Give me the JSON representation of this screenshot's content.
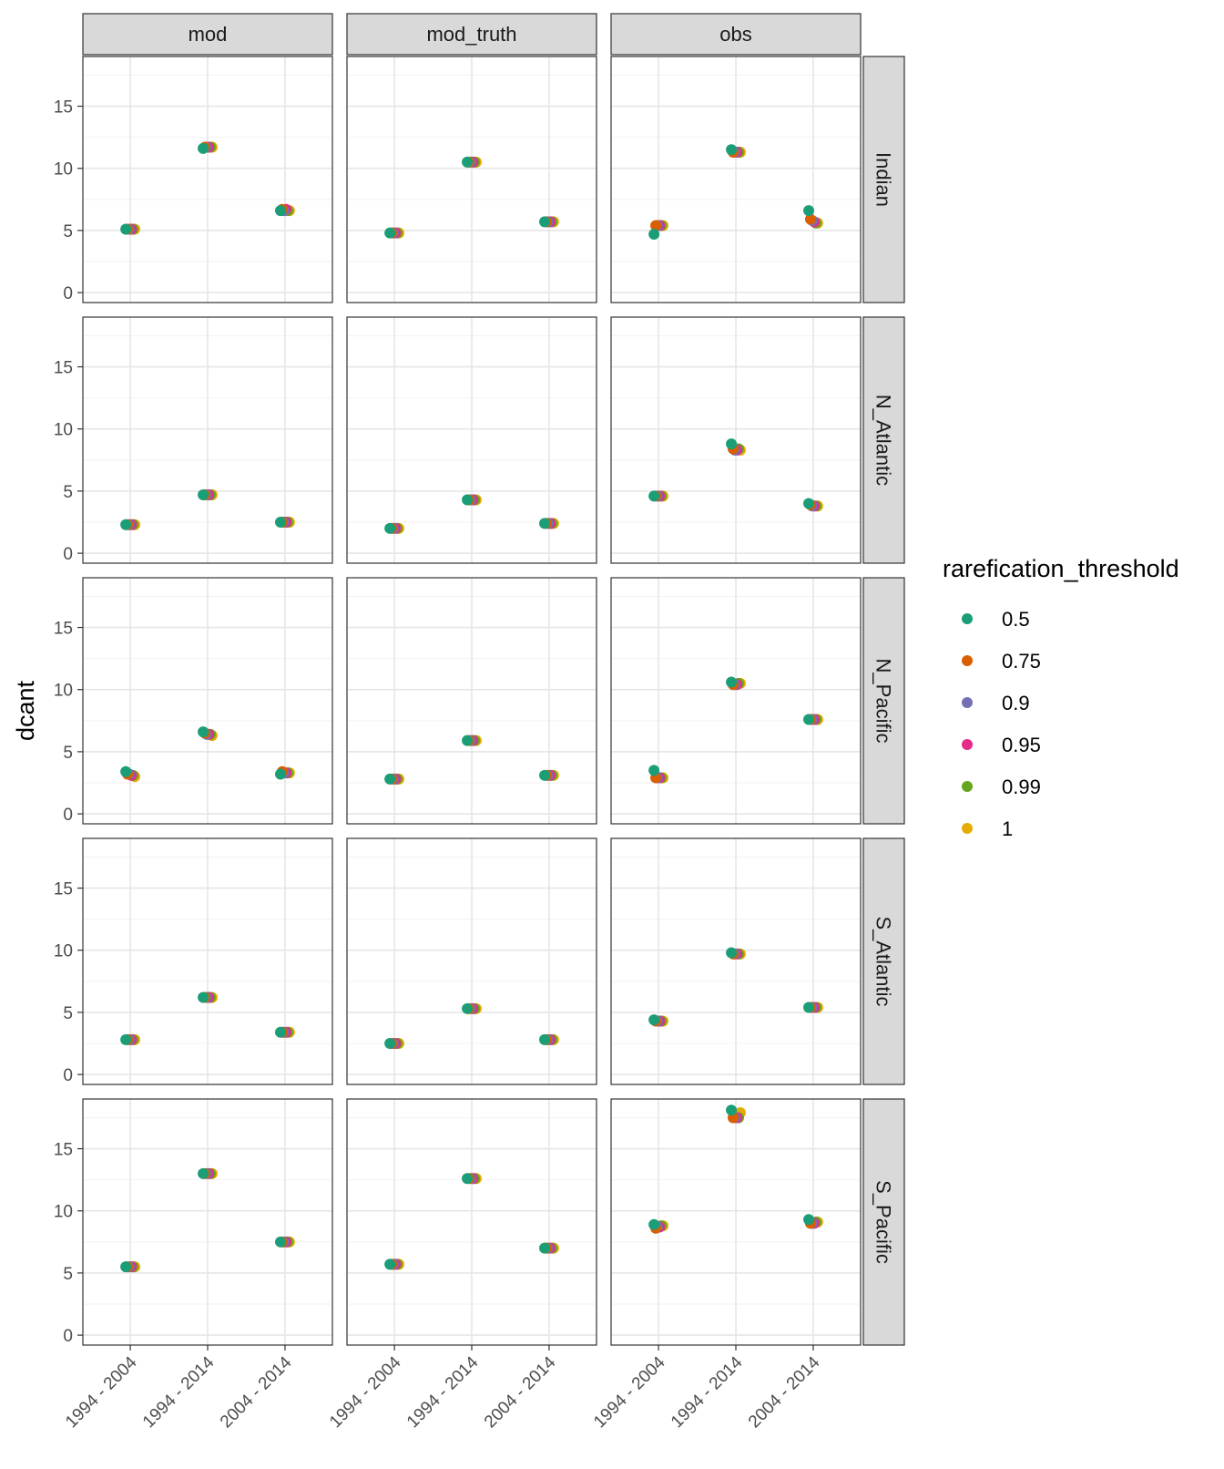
{
  "chart_data": {
    "type": "scatter",
    "ylabel": "dcant",
    "xlabel": "",
    "ylim": [
      -0.8,
      19
    ],
    "y_ticks": [
      0,
      5,
      10,
      15
    ],
    "grid": true,
    "legend_position": "right",
    "legend_title": "rarefication_threshold",
    "x_categories": [
      "1994 - 2004",
      "1994 - 2014",
      "2004 - 2014"
    ],
    "col_facets": [
      "mod",
      "mod_truth",
      "obs"
    ],
    "row_facets": [
      "Indian",
      "N_Atlantic",
      "N_Pacific",
      "S_Atlantic",
      "S_Pacific"
    ],
    "series": [
      {
        "name": "0.5",
        "color": "#1B9E77"
      },
      {
        "name": "0.75",
        "color": "#D95F02"
      },
      {
        "name": "0.9",
        "color": "#7570B3"
      },
      {
        "name": "0.95",
        "color": "#E7298A"
      },
      {
        "name": "0.99",
        "color": "#66A61E"
      },
      {
        "name": "1",
        "color": "#E6AB02"
      }
    ],
    "values": {
      "mod": {
        "Indian": [
          [
            5.1,
            5.1,
            5.1,
            5.1,
            5.1,
            5.1
          ],
          [
            11.6,
            11.7,
            11.7,
            11.7,
            11.7,
            11.7
          ],
          [
            6.6,
            6.7,
            6.6,
            6.7,
            6.6,
            6.6
          ]
        ],
        "N_Atlantic": [
          [
            2.3,
            2.3,
            2.3,
            2.3,
            2.3,
            2.3
          ],
          [
            4.7,
            4.7,
            4.7,
            4.7,
            4.7,
            4.7
          ],
          [
            2.5,
            2.5,
            2.5,
            2.5,
            2.5,
            2.5
          ]
        ],
        "N_Pacific": [
          [
            3.4,
            3.2,
            3.2,
            3.1,
            3.1,
            3.0
          ],
          [
            6.6,
            6.5,
            6.4,
            6.4,
            6.4,
            6.3
          ],
          [
            3.2,
            3.4,
            3.3,
            3.3,
            3.3,
            3.3
          ]
        ],
        "S_Atlantic": [
          [
            2.8,
            2.8,
            2.8,
            2.8,
            2.8,
            2.8
          ],
          [
            6.2,
            6.2,
            6.2,
            6.2,
            6.2,
            6.2
          ],
          [
            3.4,
            3.4,
            3.4,
            3.4,
            3.4,
            3.4
          ]
        ],
        "S_Pacific": [
          [
            5.5,
            5.5,
            5.5,
            5.5,
            5.5,
            5.5
          ],
          [
            13.0,
            13.0,
            13.0,
            13.0,
            13.0,
            13.0
          ],
          [
            7.5,
            7.5,
            7.5,
            7.5,
            7.5,
            7.5
          ]
        ]
      },
      "mod_truth": {
        "Indian": [
          [
            4.8,
            4.8,
            4.8,
            4.8,
            4.8,
            4.8
          ],
          [
            10.5,
            10.5,
            10.5,
            10.5,
            10.5,
            10.5
          ],
          [
            5.7,
            5.7,
            5.7,
            5.7,
            5.7,
            5.7
          ]
        ],
        "N_Atlantic": [
          [
            2.0,
            2.0,
            2.0,
            2.0,
            2.0,
            2.0
          ],
          [
            4.3,
            4.3,
            4.3,
            4.3,
            4.3,
            4.3
          ],
          [
            2.4,
            2.4,
            2.4,
            2.4,
            2.4,
            2.4
          ]
        ],
        "N_Pacific": [
          [
            2.8,
            2.8,
            2.8,
            2.8,
            2.8,
            2.8
          ],
          [
            5.9,
            5.9,
            5.9,
            5.9,
            5.9,
            5.9
          ],
          [
            3.1,
            3.1,
            3.1,
            3.1,
            3.1,
            3.1
          ]
        ],
        "S_Atlantic": [
          [
            2.5,
            2.5,
            2.5,
            2.5,
            2.5,
            2.5
          ],
          [
            5.3,
            5.3,
            5.3,
            5.3,
            5.3,
            5.3
          ],
          [
            2.8,
            2.8,
            2.8,
            2.8,
            2.8,
            2.8
          ]
        ],
        "S_Pacific": [
          [
            5.7,
            5.7,
            5.7,
            5.7,
            5.7,
            5.7
          ],
          [
            12.6,
            12.6,
            12.6,
            12.6,
            12.6,
            12.6
          ],
          [
            7.0,
            7.0,
            7.0,
            7.0,
            7.0,
            7.0
          ]
        ]
      },
      "obs": {
        "Indian": [
          [
            4.7,
            5.4,
            5.4,
            5.4,
            5.4,
            5.4
          ],
          [
            11.5,
            11.3,
            11.3,
            11.3,
            11.3,
            11.3
          ],
          [
            6.6,
            5.9,
            5.8,
            5.7,
            5.6,
            5.6
          ]
        ],
        "N_Atlantic": [
          [
            4.6,
            4.6,
            4.6,
            4.6,
            4.6,
            4.6
          ],
          [
            8.8,
            8.4,
            8.3,
            8.3,
            8.4,
            8.3
          ],
          [
            4.0,
            3.9,
            3.8,
            3.8,
            3.8,
            3.8
          ]
        ],
        "N_Pacific": [
          [
            3.5,
            2.9,
            2.9,
            2.9,
            2.9,
            2.9
          ],
          [
            10.6,
            10.4,
            10.4,
            10.4,
            10.5,
            10.5
          ],
          [
            7.6,
            7.6,
            7.6,
            7.6,
            7.6,
            7.6
          ]
        ],
        "S_Atlantic": [
          [
            4.4,
            4.3,
            4.3,
            4.3,
            4.3,
            4.3
          ],
          [
            9.8,
            9.7,
            9.7,
            9.7,
            9.7,
            9.7
          ],
          [
            5.4,
            5.4,
            5.4,
            5.4,
            5.4,
            5.4
          ]
        ],
        "S_Pacific": [
          [
            8.9,
            8.6,
            8.7,
            8.7,
            8.8,
            8.8
          ],
          [
            18.1,
            17.5,
            17.5,
            17.5,
            17.5,
            17.9
          ],
          [
            9.3,
            9.0,
            9.0,
            9.0,
            9.1,
            9.1
          ]
        ]
      }
    }
  }
}
